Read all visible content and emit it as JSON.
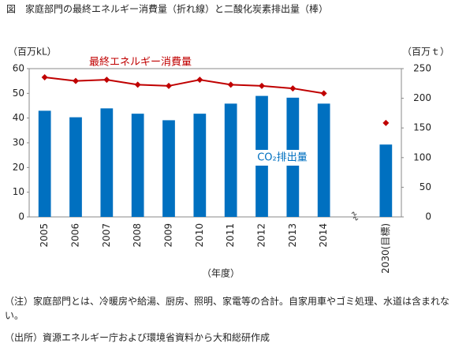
{
  "chart_data": {
    "type": "bar_line",
    "title": "図　家庭部門の最終エネルギー消費量（折れ線）と二酸化炭素排出量（棒）",
    "y_label": "（百万kL）",
    "y2_label": "（百万ｔ）",
    "x_label": "（年度）",
    "categories": [
      "2005",
      "2006",
      "2007",
      "2008",
      "2009",
      "2010",
      "2011",
      "2012",
      "2013",
      "2014",
      null,
      "2030(目標)"
    ],
    "series": [
      {
        "name": "CO₂排出量",
        "type": "bar",
        "axis": "y2",
        "color": "#0070c0",
        "values": [
          179,
          168,
          183,
          174,
          163,
          174,
          191,
          204,
          201,
          191,
          null,
          122
        ]
      },
      {
        "name": "最終エネルギー消費量",
        "type": "line",
        "axis": "y",
        "color": "#c00000",
        "values": [
          56.5,
          55,
          55.5,
          53.5,
          53,
          55.5,
          53.5,
          53,
          52,
          50,
          null,
          38
        ]
      }
    ],
    "ylim": [
      0,
      60
    ],
    "yticks": [
      0,
      10,
      20,
      30,
      40,
      50,
      60
    ],
    "y2lim": [
      0,
      250
    ],
    "y2ticks": [
      0,
      50,
      100,
      150,
      200,
      250
    ],
    "notes": [
      "（注）家庭部門とは、冷暖房や給湯、厨房、照明、家電等の合計。自家用車やゴミ処理、水道は含まれない。",
      "（出所）資源エネルギー庁および環境省資料から大和総研作成"
    ]
  }
}
